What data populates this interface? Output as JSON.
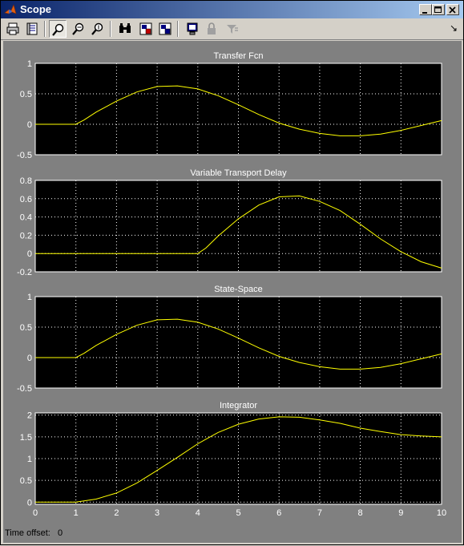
{
  "window": {
    "title": "Scope"
  },
  "toolbar": {
    "buttons": [
      {
        "name": "print-button",
        "icon": "printer-icon"
      },
      {
        "name": "parameters-button",
        "icon": "parameters-icon"
      },
      {
        "name": "zoom-button",
        "icon": "zoom-icon"
      },
      {
        "name": "zoom-x-button",
        "icon": "zoom-x-icon"
      },
      {
        "name": "zoom-y-button",
        "icon": "zoom-y-icon"
      },
      {
        "name": "autoscale-button",
        "icon": "binoculars-icon"
      },
      {
        "name": "save-axes-button",
        "icon": "save-axes-icon"
      },
      {
        "name": "restore-axes-button",
        "icon": "restore-axes-icon"
      },
      {
        "name": "floating-scope-button",
        "icon": "floating-scope-icon"
      },
      {
        "name": "lock-axes-button",
        "icon": "lock-icon"
      },
      {
        "name": "signal-selection-button",
        "icon": "signal-selection-icon"
      }
    ],
    "dock_arrow": "↘"
  },
  "status": {
    "time_offset_label": "Time offset:",
    "time_offset_value": "0"
  },
  "colors": {
    "trace": "#ffff00",
    "axes_bg": "#000000",
    "figure_bg": "#808080",
    "grid": "#ffffff"
  },
  "chart_data": [
    {
      "type": "line",
      "title": "Transfer Fcn",
      "xlim": [
        0,
        10
      ],
      "ylim": [
        -0.5,
        1
      ],
      "yticks": [
        -0.5,
        0,
        0.5,
        1
      ],
      "yticklabels": [
        "-0.5",
        "0",
        "0.5",
        "1"
      ],
      "grid": true,
      "series": [
        {
          "x": [
            0,
            1,
            1.2,
            1.5,
            2,
            2.5,
            3,
            3.5,
            4,
            4.5,
            5,
            5.5,
            6,
            6.5,
            7,
            7.5,
            8,
            8.5,
            9,
            9.5,
            10
          ],
          "y": [
            0,
            0,
            0.07,
            0.2,
            0.38,
            0.53,
            0.62,
            0.63,
            0.58,
            0.47,
            0.32,
            0.16,
            0.02,
            -0.08,
            -0.15,
            -0.19,
            -0.19,
            -0.16,
            -0.1,
            -0.02,
            0.06
          ]
        }
      ]
    },
    {
      "type": "line",
      "title": "Variable Transport Delay",
      "xlim": [
        0,
        10
      ],
      "ylim": [
        -0.2,
        0.8
      ],
      "yticks": [
        -0.2,
        0,
        0.2,
        0.4,
        0.6,
        0.8
      ],
      "yticklabels": [
        "-0.2",
        "0",
        "0.2",
        "0.4",
        "0.6",
        "0.8"
      ],
      "grid": true,
      "series": [
        {
          "x": [
            0,
            4,
            4.2,
            4.5,
            5,
            5.5,
            6,
            6.5,
            7,
            7.5,
            8,
            8.5,
            9,
            9.5,
            10
          ],
          "y": [
            0,
            0,
            0.06,
            0.19,
            0.38,
            0.53,
            0.62,
            0.63,
            0.57,
            0.47,
            0.32,
            0.16,
            0.02,
            -0.09,
            -0.16
          ]
        }
      ]
    },
    {
      "type": "line",
      "title": "State-Space",
      "xlim": [
        0,
        10
      ],
      "ylim": [
        -0.5,
        1
      ],
      "yticks": [
        -0.5,
        0,
        0.5,
        1
      ],
      "yticklabels": [
        "-0.5",
        "0",
        "0.5",
        "1"
      ],
      "grid": true,
      "series": [
        {
          "x": [
            0,
            1,
            1.2,
            1.5,
            2,
            2.5,
            3,
            3.5,
            4,
            4.5,
            5,
            5.5,
            6,
            6.5,
            7,
            7.5,
            8,
            8.5,
            9,
            9.5,
            10
          ],
          "y": [
            0,
            0,
            0.07,
            0.2,
            0.38,
            0.53,
            0.62,
            0.63,
            0.58,
            0.47,
            0.32,
            0.16,
            0.02,
            -0.08,
            -0.15,
            -0.19,
            -0.19,
            -0.16,
            -0.1,
            -0.02,
            0.06
          ]
        }
      ]
    },
    {
      "type": "line",
      "title": "Integrator",
      "xlim": [
        0,
        10
      ],
      "ylim": [
        -0.05,
        2.05
      ],
      "yticks": [
        0,
        0.5,
        1,
        1.5,
        2
      ],
      "yticklabels": [
        "0",
        "0.5",
        "1",
        "1.5",
        "2"
      ],
      "xticks": [
        0,
        1,
        2,
        3,
        4,
        5,
        6,
        7,
        8,
        9,
        10
      ],
      "xticklabels": [
        "0",
        "1",
        "2",
        "3",
        "4",
        "5",
        "6",
        "7",
        "8",
        "9",
        "10"
      ],
      "grid": true,
      "series": [
        {
          "x": [
            0,
            1,
            1.5,
            2,
            2.5,
            3,
            3.5,
            4,
            4.5,
            5,
            5.5,
            6,
            6.5,
            7,
            7.5,
            8,
            8.5,
            9,
            9.5,
            10
          ],
          "y": [
            0,
            0,
            0.07,
            0.21,
            0.44,
            0.73,
            1.03,
            1.34,
            1.6,
            1.79,
            1.91,
            1.96,
            1.95,
            1.89,
            1.81,
            1.7,
            1.62,
            1.55,
            1.52,
            1.5
          ]
        }
      ]
    }
  ]
}
